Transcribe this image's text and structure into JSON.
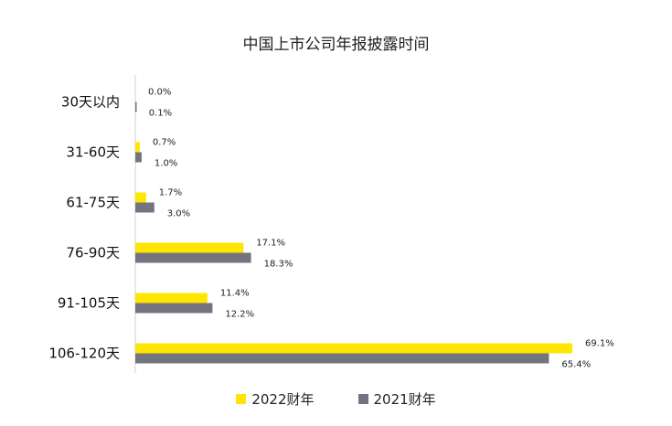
{
  "chart_data": {
    "type": "bar",
    "orientation": "horizontal",
    "title": "中国上市公司年报披露时间",
    "categories": [
      "30天以内",
      "31-60天",
      "61-75天",
      "76-90天",
      "91-105天",
      "106-120天"
    ],
    "series": [
      {
        "name": "2022财年",
        "color": "#FFE600",
        "values": [
          0.0,
          0.7,
          1.7,
          17.1,
          11.4,
          69.1
        ],
        "labels": [
          "0.0%",
          "0.7%",
          "1.7%",
          "17.1%",
          "11.4%",
          "69.1%"
        ]
      },
      {
        "name": "2021财年",
        "color": "#747480",
        "values": [
          0.1,
          1.0,
          3.0,
          18.3,
          12.2,
          65.4
        ],
        "labels": [
          "0.1%",
          "1.0%",
          "3.0%",
          "18.3%",
          "12.2%",
          "65.4%"
        ]
      }
    ],
    "xlim": [
      0,
      72
    ],
    "grid": false,
    "legend_position": "bottom"
  }
}
